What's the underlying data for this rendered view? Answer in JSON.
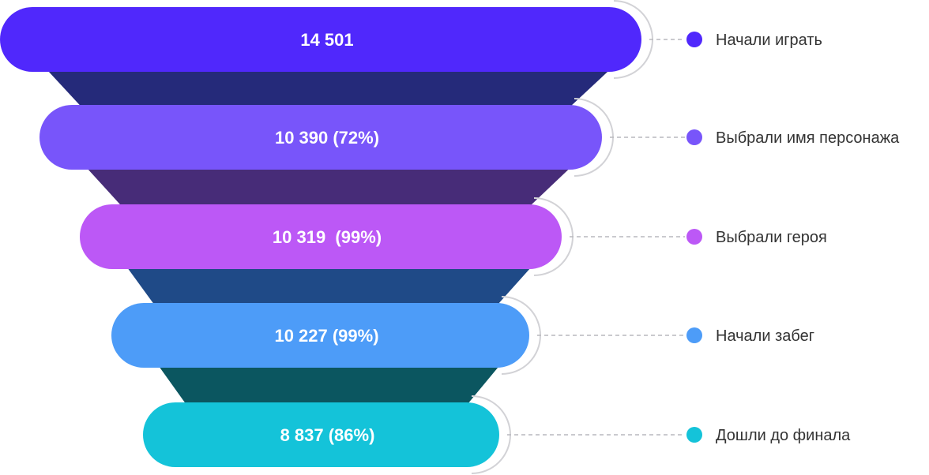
{
  "chart_data": {
    "type": "funnel",
    "stages": [
      {
        "label": "Начали играть",
        "value": 14501,
        "display": "14 501",
        "color": "#5028fc",
        "connector_color": "#252a7a"
      },
      {
        "label": "Выбрали имя персонажа",
        "value": 10390,
        "percent": 72,
        "display": "10 390 (72%)",
        "color": "#7855fa",
        "connector_color": "#472c78"
      },
      {
        "label": "Выбрали героя",
        "value": 10319,
        "percent": 99,
        "display": "10 319  (99%)",
        "color": "#bc58f6",
        "connector_color": "#1f4a87"
      },
      {
        "label": "Начали забег",
        "value": 10227,
        "percent": 99,
        "display": "10 227 (99%)",
        "color": "#4d9cf8",
        "connector_color": "#0b5660"
      },
      {
        "label": "Дошли до финала",
        "value": 8837,
        "percent": 86,
        "display": "8 837 (86%)",
        "color": "#14c3d9"
      }
    ],
    "legend_placement": "right"
  }
}
